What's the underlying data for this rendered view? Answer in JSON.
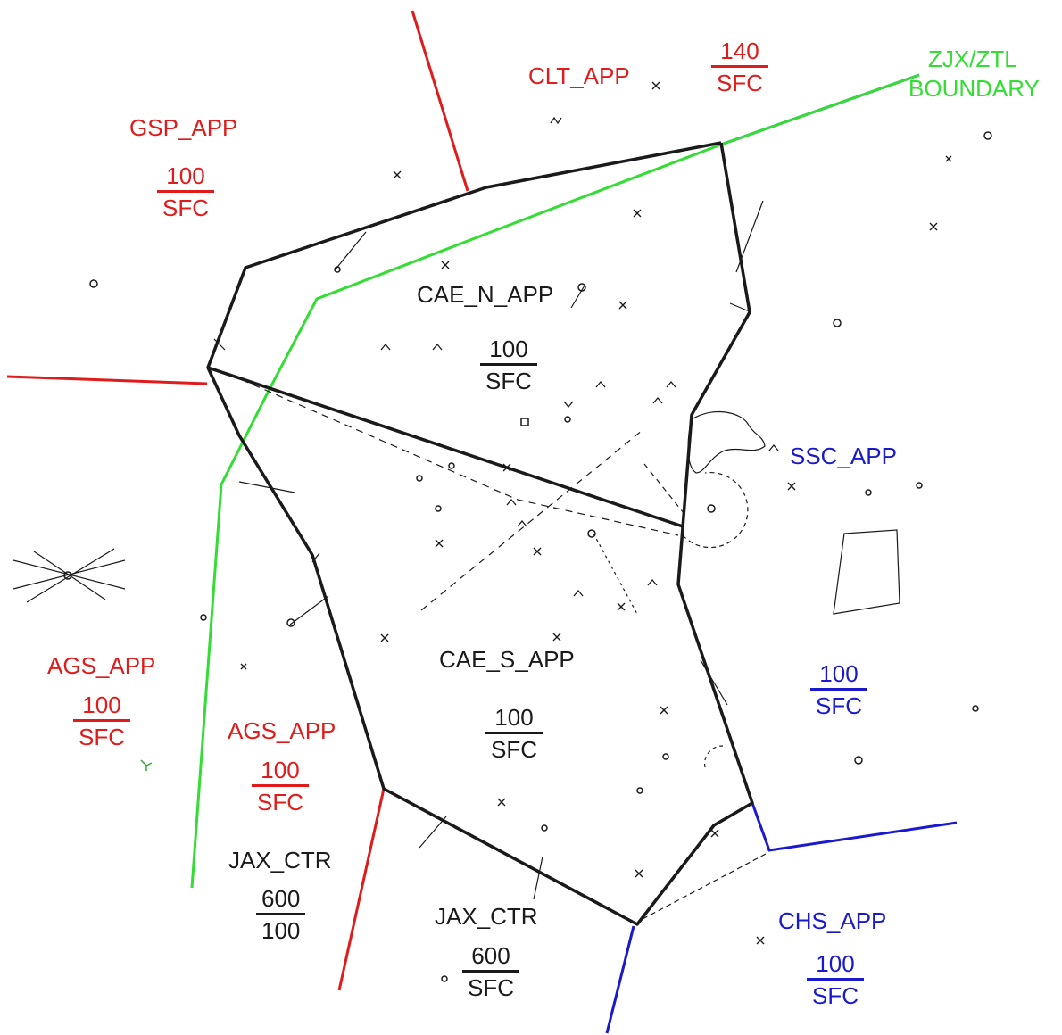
{
  "colors": {
    "approach_red": "#e01b1b",
    "approach_blue": "#1a1acc",
    "sector_black": "#1a1a1a",
    "boundary_green": "#33dd33"
  },
  "labels": {
    "gsp_app": "GSP_APP",
    "clt_app": "CLT_APP",
    "zjx_ztl_line1": "ZJX/ZTL",
    "zjx_ztl_line2": "BOUNDARY",
    "cae_n_app": "CAE_N_APP",
    "cae_s_app": "CAE_S_APP",
    "ssc_app": "SSC_APP",
    "ags_app_west": "AGS_APP",
    "ags_app_east": "AGS_APP",
    "jax_ctr_west": "JAX_CTR",
    "jax_ctr_south": "JAX_CTR",
    "chs_app": "CHS_APP"
  },
  "altitudes": {
    "gsp": {
      "top": "100",
      "bottom": "SFC"
    },
    "clt": {
      "top": "140",
      "bottom": "SFC"
    },
    "cae_n": {
      "top": "100",
      "bottom": "SFC"
    },
    "cae_s": {
      "top": "100",
      "bottom": "SFC"
    },
    "ssc": {
      "top": "100",
      "bottom": "SFC"
    },
    "ags_west": {
      "top": "100",
      "bottom": "SFC"
    },
    "ags_east": {
      "top": "100",
      "bottom": "SFC"
    },
    "jax_west": {
      "top": "600",
      "bottom": "100"
    },
    "jax_south": {
      "top": "600",
      "bottom": "SFC"
    },
    "chs": {
      "top": "100",
      "bottom": "SFC"
    }
  }
}
